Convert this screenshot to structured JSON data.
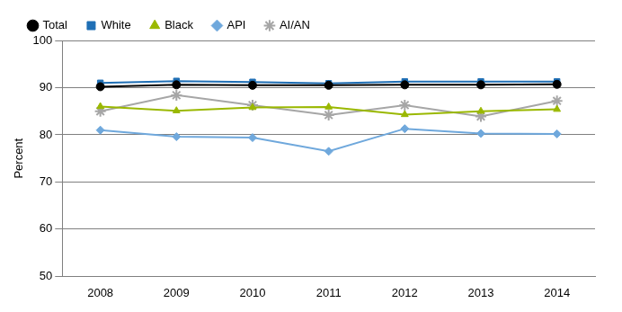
{
  "chart_data": {
    "type": "line",
    "y_label": "Percent",
    "categories": [
      "2008",
      "2009",
      "2010",
      "2011",
      "2012",
      "2013",
      "2014"
    ],
    "series": [
      {
        "name": "Total",
        "color": "#000000",
        "marker": "circle",
        "values": [
          90.2,
          90.6,
          90.5,
          90.5,
          90.6,
          90.6,
          90.7
        ]
      },
      {
        "name": "White",
        "color": "#1f6fb5",
        "marker": "square",
        "values": [
          91.0,
          91.4,
          91.2,
          90.9,
          91.3,
          91.3,
          91.3
        ]
      },
      {
        "name": "Black",
        "color": "#9ab800",
        "marker": "triangle",
        "values": [
          86.0,
          85.1,
          85.8,
          85.9,
          84.3,
          85.0,
          85.4
        ]
      },
      {
        "name": "API",
        "color": "#6fa8dc",
        "marker": "diamond",
        "values": [
          81.0,
          79.6,
          79.4,
          76.5,
          81.3,
          80.3,
          80.2
        ]
      },
      {
        "name": "AI/AN",
        "color": "#a6a6a6",
        "marker": "star",
        "values": [
          85.0,
          88.4,
          86.3,
          84.2,
          86.3,
          83.9,
          87.2
        ]
      }
    ],
    "ylim": [
      50,
      100
    ],
    "yticks": [
      50,
      60,
      70,
      80,
      90,
      100
    ],
    "grid": true,
    "legend": "top-left"
  }
}
